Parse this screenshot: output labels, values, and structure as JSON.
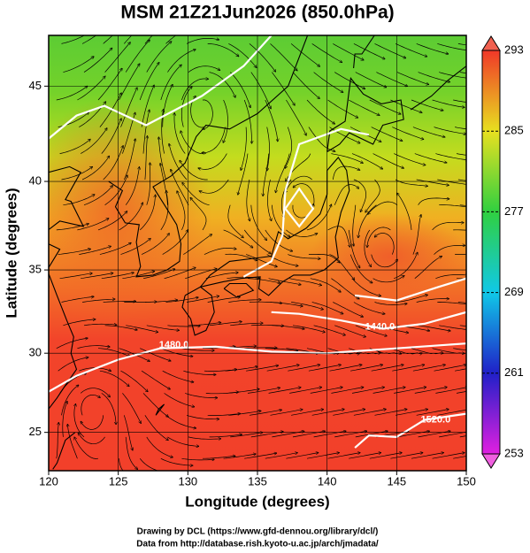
{
  "map": {
    "title": "MSM 21Z21Jun2026 (850.0hPa)",
    "xlabel": "Longitude (degrees)",
    "ylabel": "Latitude  (degrees)",
    "projection": "mercator",
    "xlim": [
      120,
      150
    ],
    "ylim": [
      22.5,
      47.5
    ],
    "xticks": [
      120,
      125,
      130,
      135,
      140,
      145,
      150
    ],
    "yticks": [
      25,
      30,
      35,
      40,
      45
    ],
    "grid": true,
    "colorbar": {
      "lim": [
        253,
        293
      ],
      "ticks": [
        253,
        261,
        269,
        277,
        285,
        293
      ]
    },
    "contours": [
      {
        "value": 1440,
        "label": "1440.0"
      },
      {
        "value": 1480,
        "label": "1480.0"
      },
      {
        "value": 1520,
        "label": "1520.0"
      }
    ],
    "footer": [
      "Drawing by DCL (https://www.gfd-dennou.org/library/dcl/)",
      "Data from http://database.rish.kyoto-u.ac.jp/arch/jmadata/"
    ]
  }
}
